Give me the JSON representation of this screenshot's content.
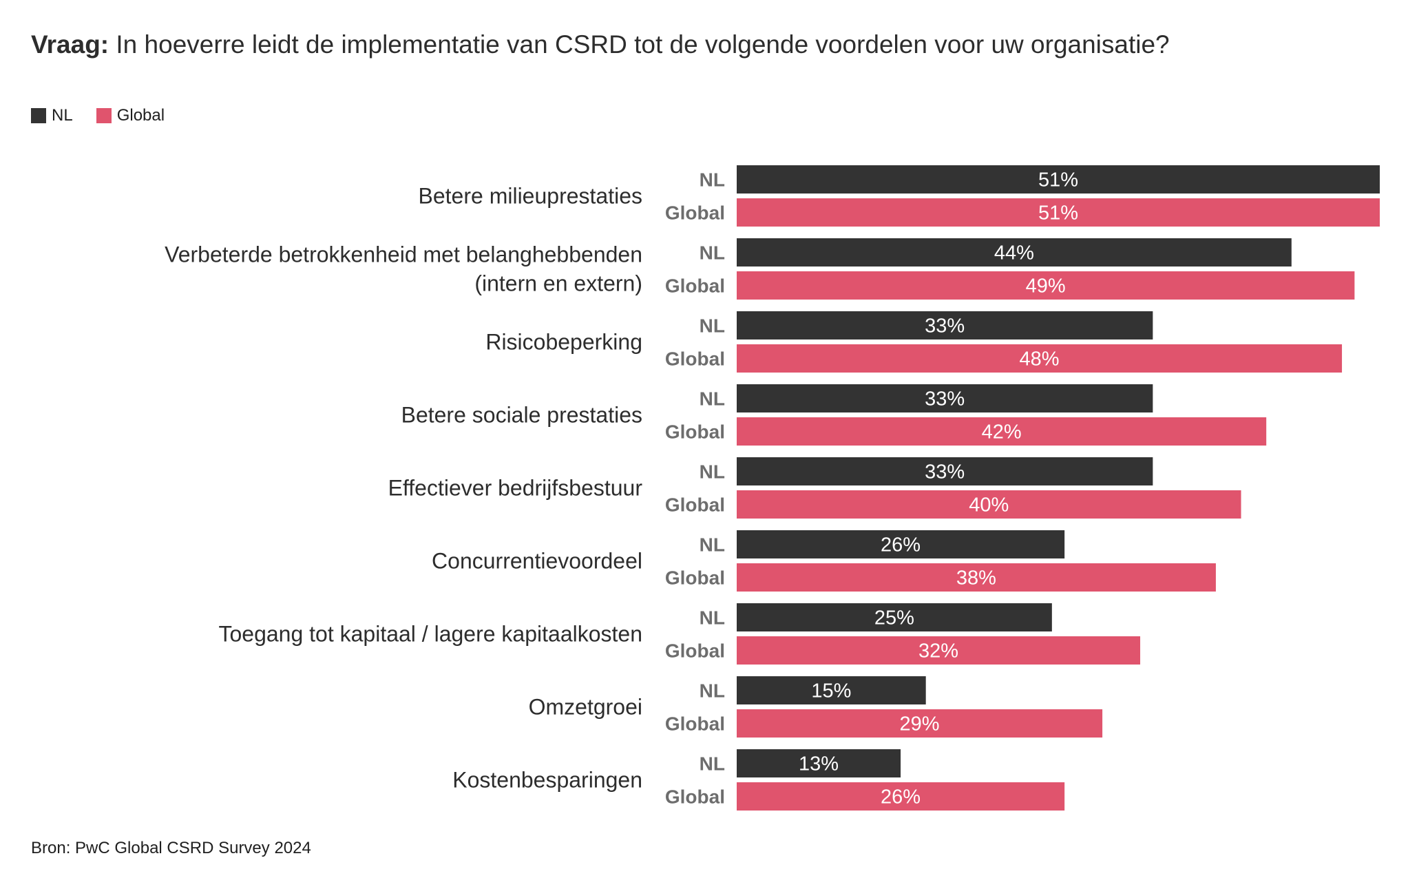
{
  "title": {
    "prefix": "Vraag:",
    "text": "In hoeverre leidt de implementatie van CSRD tot de volgende voordelen voor uw organisatie?"
  },
  "legend": [
    {
      "label": "NL",
      "color": "#333333"
    },
    {
      "label": "Global",
      "color": "#e0546d"
    }
  ],
  "source": "Bron: PwC Global CSRD Survey 2024",
  "chart_data": {
    "type": "bar",
    "orientation": "horizontal",
    "categories": [
      [
        "Betere milieuprestaties"
      ],
      [
        "Verbeterde betrokkenheid met belanghebbenden",
        "(intern en extern)"
      ],
      [
        "Risicobeperking"
      ],
      [
        "Betere sociale prestaties"
      ],
      [
        "Effectiever bedrijfsbestuur"
      ],
      [
        "Concurrentievoordeel"
      ],
      [
        "Toegang tot kapitaal / lagere kapitaalkosten"
      ],
      [
        "Omzetgroei"
      ],
      [
        "Kostenbesparingen"
      ]
    ],
    "series": [
      {
        "name": "NL",
        "color": "#333333",
        "values": [
          51,
          44,
          33,
          33,
          33,
          26,
          25,
          15,
          13
        ]
      },
      {
        "name": "Global",
        "color": "#e0546d",
        "values": [
          51,
          49,
          48,
          42,
          40,
          38,
          32,
          29,
          26
        ]
      }
    ],
    "value_suffix": "%",
    "xlim": [
      0,
      51
    ],
    "grid": false,
    "legend_position": "top-left"
  }
}
